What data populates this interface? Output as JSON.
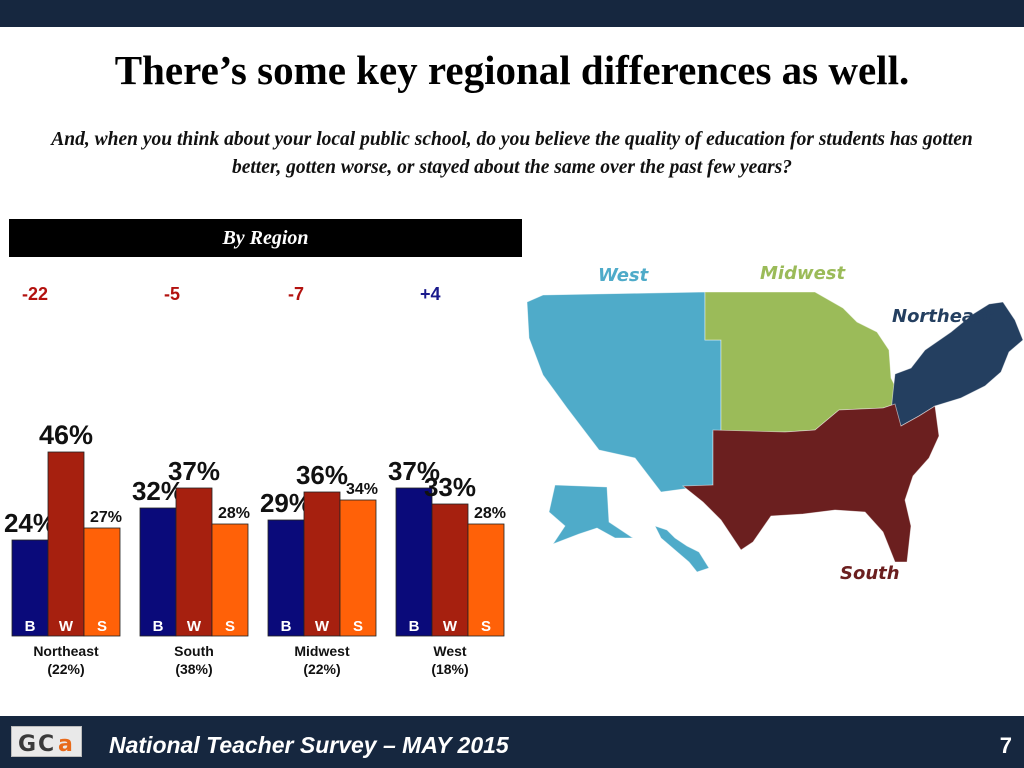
{
  "slide": {
    "title": "There’s some key regional differences as well.",
    "question": "And, when you think about your local public school, do you believe the quality of education for students has gotten better, gotten worse, or stayed about the same over the past few years?",
    "section_header": "By Region",
    "page_number": "7"
  },
  "footer": {
    "text": "National Teacher Survey – MAY 2015",
    "logo_text": "GCA"
  },
  "colors": {
    "better": "#0a0a7a",
    "worse": "#a6200f",
    "same": "#ff6108",
    "negative_diff": "#b3120f",
    "positive_diff": "#1a1a8c",
    "map_west": "#4fabc9",
    "map_midwest": "#9bbb59",
    "map_northeast": "#243f60",
    "map_south": "#6b1f1f"
  },
  "map_labels": {
    "west": "West",
    "midwest": "Midwest",
    "northeast": "Northeast",
    "south": "South"
  },
  "chart_data": {
    "type": "bar",
    "series": [
      {
        "short": "B",
        "values": [
          24,
          32,
          29,
          37
        ]
      },
      {
        "short": "W",
        "values": [
          46,
          37,
          36,
          33
        ]
      },
      {
        "short": "S",
        "values": [
          27,
          28,
          34,
          28
        ]
      }
    ],
    "groups": [
      {
        "name": "Northeast",
        "share": "(22%)",
        "diff": "-22"
      },
      {
        "name": "South",
        "share": "(38%)",
        "diff": "-5"
      },
      {
        "name": "Midwest",
        "share": "(22%)",
        "diff": "-7"
      },
      {
        "name": "West",
        "share": "(18%)",
        "diff": "+4"
      }
    ],
    "value_suffix": "%",
    "ylim": [
      0,
      50
    ]
  }
}
